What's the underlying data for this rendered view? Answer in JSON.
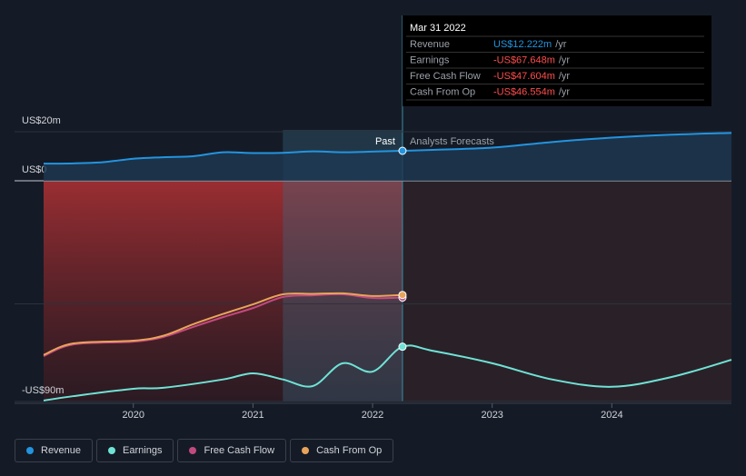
{
  "chart_data": {
    "type": "line",
    "xlim": [
      2019.25,
      2025
    ],
    "xticks": [
      2020,
      2021,
      2022,
      2023,
      2024
    ],
    "ylim": [
      -90,
      20
    ],
    "yticks": [
      {
        "value": 20,
        "label": "US$20m"
      },
      {
        "value": 0,
        "label": "US$0"
      },
      {
        "value": -90,
        "label": "-US$90m"
      }
    ],
    "past_label": "Past",
    "forecast_label": "Analysts Forecasts",
    "series": [
      {
        "name": "Revenue",
        "color": "#2394df",
        "x": [
          2019.25,
          2019.5,
          2019.75,
          2020,
          2020.25,
          2020.5,
          2020.75,
          2021,
          2021.25,
          2021.5,
          2021.75,
          2022,
          2022.25,
          2022.5,
          2023,
          2023.5,
          2024,
          2024.5,
          2025
        ],
        "values": [
          7.0,
          7.1,
          7.6,
          9.0,
          9.6,
          10.0,
          11.6,
          11.3,
          11.4,
          12.0,
          11.6,
          11.9,
          12.222,
          12.6,
          13.5,
          15.8,
          17.6,
          18.8,
          19.5
        ]
      },
      {
        "name": "Earnings",
        "color": "#6fe3d6",
        "x": [
          2019.25,
          2019.5,
          2020,
          2020.25,
          2020.75,
          2021,
          2021.25,
          2021.5,
          2021.75,
          2022,
          2022.25,
          2022.5,
          2023,
          2023.5,
          2024,
          2024.5,
          2025
        ],
        "values": [
          -89.6,
          -87.8,
          -84.8,
          -84.4,
          -81.0,
          -78.5,
          -81.0,
          -83.7,
          -74.4,
          -77.8,
          -67.648,
          -69.3,
          -74.4,
          -81.0,
          -84.0,
          -80.0,
          -73.0
        ]
      },
      {
        "name": "Free Cash Flow",
        "color": "#c2497f",
        "x": [
          2019.25,
          2019.5,
          2020,
          2020.25,
          2020.5,
          2020.75,
          2021,
          2021.25,
          2021.5,
          2021.75,
          2022,
          2022.25
        ],
        "values": [
          -71.5,
          -66.7,
          -65.6,
          -63.7,
          -59.6,
          -55.6,
          -51.9,
          -47.4,
          -46.7,
          -46.3,
          -47.8,
          -47.604
        ]
      },
      {
        "name": "Cash From Op",
        "color": "#e8a45a",
        "x": [
          2019.25,
          2019.5,
          2020,
          2020.25,
          2020.5,
          2020.75,
          2021,
          2021.25,
          2021.5,
          2021.75,
          2022,
          2022.25
        ],
        "values": [
          -71.0,
          -66.3,
          -65.2,
          -63.2,
          -58.5,
          -54.3,
          -50.4,
          -46.3,
          -46.1,
          -45.9,
          -47.0,
          -46.554
        ]
      }
    ],
    "tooltip": {
      "date": "Mar 31 2022",
      "unit": "/yr",
      "rows": [
        {
          "label": "Revenue",
          "value": "US$12.222m",
          "color": "#2394df"
        },
        {
          "label": "Earnings",
          "value": "-US$67.648m",
          "color": "#ff4d4d"
        },
        {
          "label": "Free Cash Flow",
          "value": "-US$47.604m",
          "color": "#ff4d4d"
        },
        {
          "label": "Cash From Op",
          "value": "-US$46.554m",
          "color": "#ff4d4d"
        }
      ]
    }
  }
}
